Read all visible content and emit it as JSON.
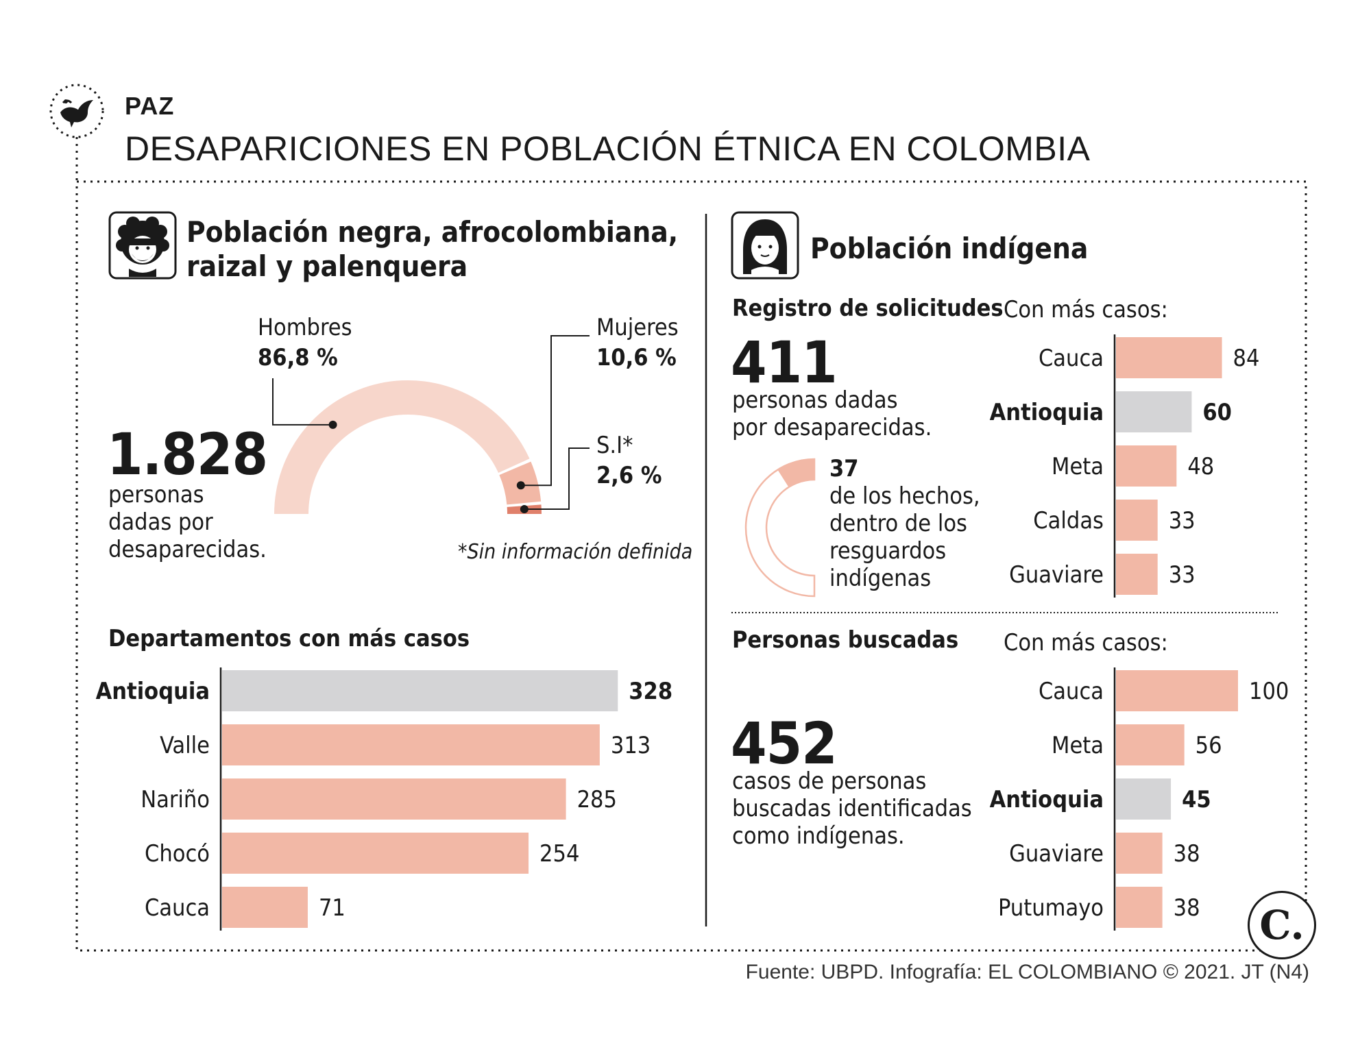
{
  "header": {
    "section": "PAZ",
    "title": "DESAPARICIONES EN POBLACIÓN ÉTNICA EN COLOMBIA"
  },
  "afro": {
    "heading_line1": "Población negra, afrocolombiana,",
    "heading_line2": "raizal y palenquera",
    "total": "1.828",
    "total_desc_line1": "personas",
    "total_desc_line2": "dadas por",
    "total_desc_line3": "desaparecidas.",
    "footnote": "*Sin información definida",
    "departments_title": "Departamentos con más casos"
  },
  "indigena": {
    "heading": "Población indígena",
    "registro_title": "Registro de solicitudes",
    "registro_total": "411",
    "registro_desc_line1": "personas dadas",
    "registro_desc_line2": "por desaparecidas.",
    "resguardos_value": "37",
    "resguardos_line1": "de los hechos,",
    "resguardos_line2": "dentro de los",
    "resguardos_line3": "resguardos",
    "resguardos_line4": "indígenas",
    "con_mas_casos_1": "Con más casos:",
    "buscadas_title": "Personas buscadas",
    "buscadas_total": "452",
    "buscadas_desc_line1": "casos de personas",
    "buscadas_desc_line2": "buscadas identificadas",
    "buscadas_desc_line3": "como indígenas.",
    "con_mas_casos_2": "Con más casos:"
  },
  "footer": {
    "source": "Fuente: UBPD. Infografía: EL COLOMBIANO © 2021. JT (N4)",
    "logo_letter": "C."
  },
  "colors": {
    "salmon": "#f2b8a6",
    "light_salmon": "#f7d6cb",
    "gray": "#d4d4d6",
    "dark_salmon": "#e0806b",
    "text": "#1a1a1a"
  },
  "chart_data": [
    {
      "type": "pie",
      "subtype": "half-donut",
      "slices": [
        {
          "label": "Hombres",
          "value": 86.8,
          "display": "86,8 %"
        },
        {
          "label": "Mujeres",
          "value": 10.6,
          "display": "10,6 %"
        },
        {
          "label": "S.I*",
          "value": 2.6,
          "display": "2,6 %"
        }
      ]
    },
    {
      "type": "bar",
      "orientation": "horizontal",
      "title": "Departamentos con más casos",
      "categories": [
        "Antioquia",
        "Valle",
        "Nariño",
        "Chocó",
        "Cauca"
      ],
      "values": [
        328,
        313,
        285,
        254,
        71
      ],
      "highlight": "Antioquia"
    },
    {
      "type": "bar",
      "orientation": "horizontal",
      "title": "Con más casos:",
      "categories": [
        "Cauca",
        "Antioquia",
        "Meta",
        "Caldas",
        "Guaviare"
      ],
      "values": [
        84,
        60,
        48,
        33,
        33
      ],
      "highlight": "Antioquia"
    },
    {
      "type": "pie",
      "subtype": "donut",
      "slices": [
        {
          "label": "de los hechos, dentro de los resguardos indígenas",
          "value": 37
        },
        {
          "label": "",
          "value": 374
        }
      ]
    },
    {
      "type": "bar",
      "orientation": "horizontal",
      "title": "Con más casos:",
      "categories": [
        "Cauca",
        "Meta",
        "Antioquia",
        "Guaviare",
        "Putumayo"
      ],
      "values": [
        100,
        56,
        45,
        38,
        38
      ],
      "highlight": "Antioquia"
    }
  ]
}
